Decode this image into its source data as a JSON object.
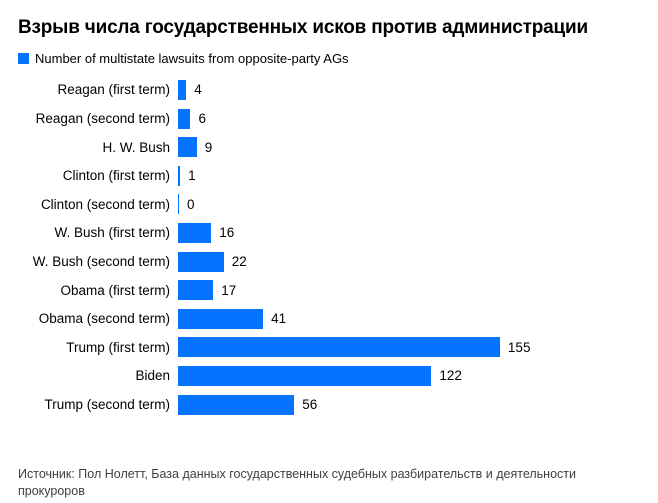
{
  "title": "Взрыв числа государственных исков против администрации",
  "legend": {
    "label": "Number of multistate lawsuits from opposite-party AGs",
    "swatch_color": "#0673FF"
  },
  "chart_data": {
    "type": "bar",
    "orientation": "horizontal",
    "title": "Взрыв числа государственных исков против администрации",
    "series_name": "Number of multistate lawsuits from opposite-party AGs",
    "categories": [
      "Reagan (first term)",
      "Reagan (second term)",
      "H. W. Bush",
      "Clinton (first term)",
      "Clinton (second term)",
      "W. Bush (first term)",
      "W. Bush (second term)",
      "Obama (first term)",
      "Obama (second term)",
      "Trump (first term)",
      "Biden",
      "Trump (second term)"
    ],
    "values": [
      4,
      6,
      9,
      1,
      0,
      16,
      22,
      17,
      41,
      155,
      122,
      56
    ],
    "bar_color": "#0673FF",
    "value_labels_shown": true,
    "xlim": [
      0,
      160
    ],
    "grid": false,
    "axis_shown": false,
    "legend_position": "top-left"
  },
  "source": "Источник: Пол Нолетт, База данных государственных судебных разбирательств и деятельности прокуроров"
}
